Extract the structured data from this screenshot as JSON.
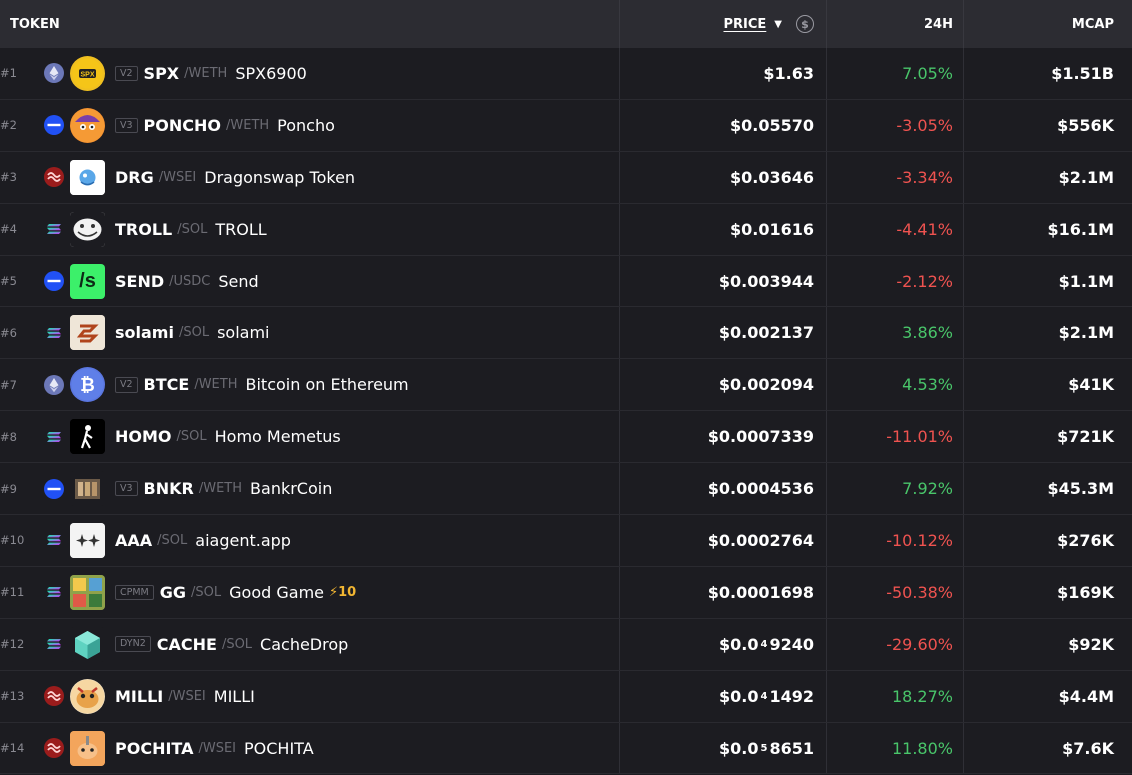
{
  "header": {
    "token": "TOKEN",
    "price": "PRICE",
    "change": "24H",
    "mcap": "MCAP"
  },
  "colors": {
    "up": "#49c56a",
    "down": "#ef5350",
    "bg": "#1c1c21",
    "header_bg": "#2c2c32"
  },
  "rows": [
    {
      "rank": "#1",
      "chain": "ethereum",
      "version": "V2",
      "symbol": "SPX",
      "pair": "/WETH",
      "name": "SPX6900",
      "boost": "",
      "price": "$1.63",
      "price_sub": "",
      "price_tail": "",
      "change": "7.05%",
      "dir": "up",
      "mcap": "$1.51B"
    },
    {
      "rank": "#2",
      "chain": "base",
      "version": "V3",
      "symbol": "PONCHO",
      "pair": "/WETH",
      "name": "Poncho",
      "boost": "",
      "price": "$0.05570",
      "price_sub": "",
      "price_tail": "",
      "change": "-3.05%",
      "dir": "down",
      "mcap": "$556K"
    },
    {
      "rank": "#3",
      "chain": "sei",
      "version": "",
      "symbol": "DRG",
      "pair": "/WSEI",
      "name": "Dragonswap Token",
      "boost": "",
      "price": "$0.03646",
      "price_sub": "",
      "price_tail": "",
      "change": "-3.34%",
      "dir": "down",
      "mcap": "$2.1M"
    },
    {
      "rank": "#4",
      "chain": "solana",
      "version": "",
      "symbol": "TROLL",
      "pair": "/SOL",
      "name": "TROLL",
      "boost": "",
      "price": "$0.01616",
      "price_sub": "",
      "price_tail": "",
      "change": "-4.41%",
      "dir": "down",
      "mcap": "$16.1M"
    },
    {
      "rank": "#5",
      "chain": "base",
      "version": "",
      "symbol": "SEND",
      "pair": "/USDC",
      "name": "Send",
      "boost": "",
      "price": "$0.003944",
      "price_sub": "",
      "price_tail": "",
      "change": "-2.12%",
      "dir": "down",
      "mcap": "$1.1M"
    },
    {
      "rank": "#6",
      "chain": "solana",
      "version": "",
      "symbol": "solami",
      "pair": "/SOL",
      "name": "solami",
      "boost": "",
      "price": "$0.002137",
      "price_sub": "",
      "price_tail": "",
      "change": "3.86%",
      "dir": "up",
      "mcap": "$2.1M"
    },
    {
      "rank": "#7",
      "chain": "ethereum",
      "version": "V2",
      "symbol": "BTCE",
      "pair": "/WETH",
      "name": "Bitcoin on Ethereum",
      "boost": "",
      "price": "$0.002094",
      "price_sub": "",
      "price_tail": "",
      "change": "4.53%",
      "dir": "up",
      "mcap": "$41K"
    },
    {
      "rank": "#8",
      "chain": "solana",
      "version": "",
      "symbol": "HOMO",
      "pair": "/SOL",
      "name": "Homo Memetus",
      "boost": "",
      "price": "$0.0007339",
      "price_sub": "",
      "price_tail": "",
      "change": "-11.01%",
      "dir": "down",
      "mcap": "$721K"
    },
    {
      "rank": "#9",
      "chain": "base",
      "version": "V3",
      "symbol": "BNKR",
      "pair": "/WETH",
      "name": "BankrCoin",
      "boost": "",
      "price": "$0.0004536",
      "price_sub": "",
      "price_tail": "",
      "change": "7.92%",
      "dir": "up",
      "mcap": "$45.3M"
    },
    {
      "rank": "#10",
      "chain": "solana",
      "version": "",
      "symbol": "AAA",
      "pair": "/SOL",
      "name": "aiagent.app",
      "boost": "",
      "price": "$0.0002764",
      "price_sub": "",
      "price_tail": "",
      "change": "-10.12%",
      "dir": "down",
      "mcap": "$276K"
    },
    {
      "rank": "#11",
      "chain": "solana",
      "version": "CPMM",
      "symbol": "GG",
      "pair": "/SOL",
      "name": "Good Game",
      "boost": "⚡10",
      "price": "$0.0001698",
      "price_sub": "",
      "price_tail": "",
      "change": "-50.38%",
      "dir": "down",
      "mcap": "$169K"
    },
    {
      "rank": "#12",
      "chain": "solana",
      "version": "DYN2",
      "symbol": "CACHE",
      "pair": "/SOL",
      "name": "CacheDrop",
      "boost": "",
      "price": "$0.0",
      "price_sub": "4",
      "price_tail": "9240",
      "change": "-29.60%",
      "dir": "down",
      "mcap": "$92K"
    },
    {
      "rank": "#13",
      "chain": "sei",
      "version": "",
      "symbol": "MILLI",
      "pair": "/WSEI",
      "name": "MILLI",
      "boost": "",
      "price": "$0.0",
      "price_sub": "4",
      "price_tail": "1492",
      "change": "18.27%",
      "dir": "up",
      "mcap": "$4.4M"
    },
    {
      "rank": "#14",
      "chain": "sei",
      "version": "",
      "symbol": "POCHITA",
      "pair": "/WSEI",
      "name": "POCHITA",
      "boost": "",
      "price": "$0.0",
      "price_sub": "5",
      "price_tail": "8651",
      "change": "11.80%",
      "dir": "up",
      "mcap": "$7.6K"
    }
  ]
}
